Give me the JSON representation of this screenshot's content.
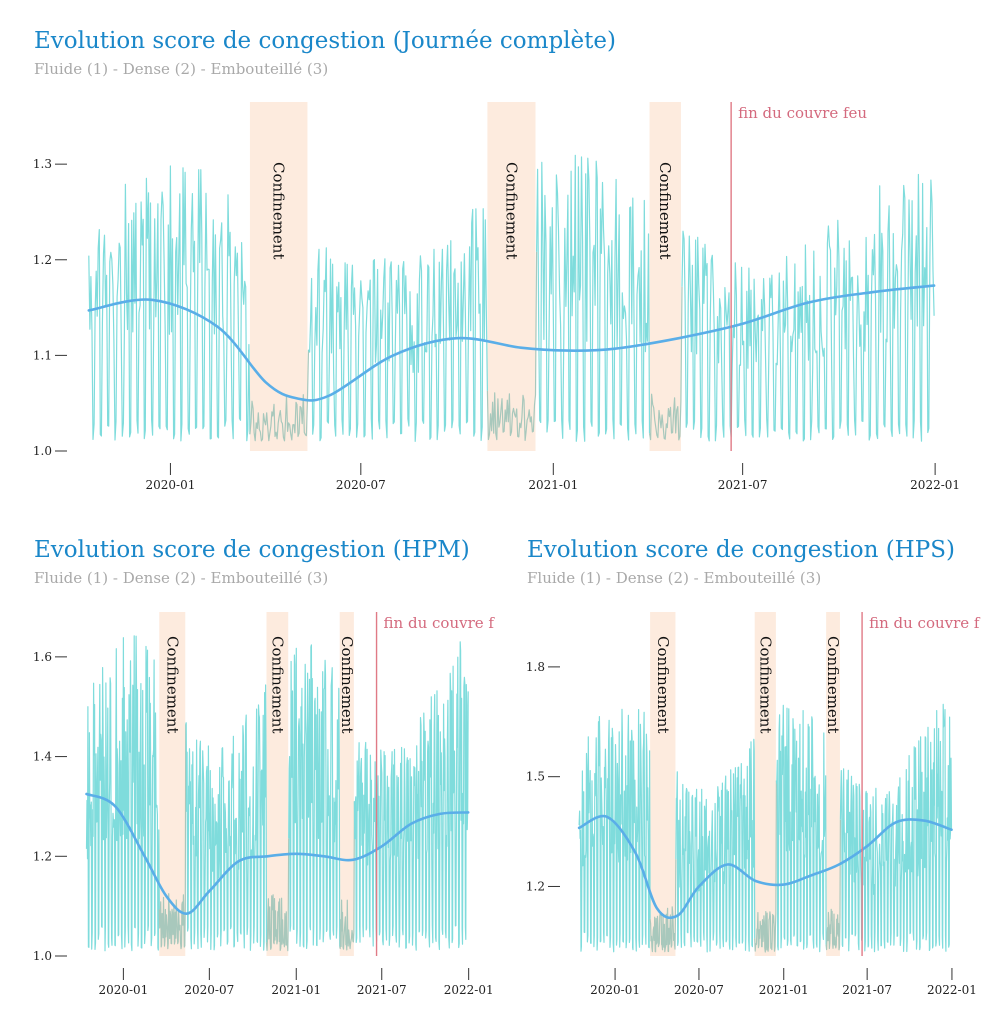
{
  "colors": {
    "title": "#1a87c9",
    "subtitle": "#a9a9a9",
    "raw_line": "#7fdcdc",
    "raw_line_lockdown": "#a8c8bc",
    "trend": "#5aaee8",
    "trend_lockdown": "#79a9c9",
    "band": "#fdebde",
    "curfew_line": "#e07a86",
    "axis_text": "#222222"
  },
  "chart_data": [
    {
      "id": "full",
      "type": "line",
      "title": "Evolution score de congestion (Journée complète)",
      "subtitle": "Fluide (1) - Dense (2) - Embouteillé (3)",
      "xlabel": "",
      "ylabel": "",
      "x_start": "2019-10-15",
      "x_end": "2021-12-31",
      "xlim": [
        "2019-09-27",
        "2022-01-20"
      ],
      "ylim": [
        1.0,
        1.365
      ],
      "x_ticks": [
        "2020-01",
        "2020-07",
        "2021-01",
        "2021-07",
        "2022-01"
      ],
      "y_ticks": [
        1.0,
        1.1,
        1.2,
        1.3
      ],
      "y_tick_labels": [
        "1.0",
        "1.1",
        "1.2",
        "1.3"
      ],
      "raw_range": {
        "base": 1.01,
        "peak_max": 1.3
      },
      "trend": {
        "x": [
          "2019-10-15",
          "2019-12-15",
          "2020-02-15",
          "2020-04-01",
          "2020-05-01",
          "2020-06-01",
          "2020-08-01",
          "2020-10-01",
          "2020-12-01",
          "2021-01-15",
          "2021-03-01",
          "2021-05-01",
          "2021-07-01",
          "2021-09-01",
          "2021-11-01",
          "2021-12-31"
        ],
        "y": [
          1.147,
          1.158,
          1.13,
          1.072,
          1.055,
          1.058,
          1.1,
          1.118,
          1.108,
          1.105,
          1.107,
          1.118,
          1.133,
          1.155,
          1.166,
          1.173
        ]
      },
      "lockdowns": [
        {
          "label": "Confinement",
          "start": "2020-03-17",
          "end": "2020-05-11"
        },
        {
          "label": "Confinement",
          "start": "2020-10-30",
          "end": "2020-12-15"
        },
        {
          "label": "Confinement",
          "start": "2021-04-03",
          "end": "2021-05-03"
        }
      ],
      "curfew": {
        "label": "fin du couvre feu",
        "date": "2021-06-20"
      }
    },
    {
      "id": "hpm",
      "type": "line",
      "title": "Evolution score de congestion (HPM)",
      "subtitle": "Fluide (1) - Dense (2) - Embouteillé (3)",
      "xlabel": "",
      "ylabel": "",
      "x_start": "2019-10-15",
      "x_end": "2021-12-31",
      "xlim": [
        "2019-09-10",
        "2022-01-25"
      ],
      "ylim": [
        1.0,
        1.69
      ],
      "x_ticks": [
        "2020-01",
        "2020-07",
        "2021-01",
        "2021-07",
        "2022-01"
      ],
      "y_ticks": [
        1.0,
        1.2,
        1.4,
        1.6
      ],
      "y_tick_labels": [
        "1.0",
        "1.2",
        "1.4",
        "1.6"
      ],
      "raw_range": {
        "base": 1.01,
        "peak_max": 1.64
      },
      "trend": {
        "x": [
          "2019-10-15",
          "2019-12-15",
          "2020-02-15",
          "2020-04-01",
          "2020-05-15",
          "2020-07-01",
          "2020-09-01",
          "2020-11-01",
          "2021-01-01",
          "2021-03-01",
          "2021-05-01",
          "2021-07-01",
          "2021-09-01",
          "2021-11-01",
          "2021-12-31"
        ],
        "y": [
          1.325,
          1.3,
          1.2,
          1.12,
          1.085,
          1.13,
          1.19,
          1.2,
          1.205,
          1.2,
          1.193,
          1.22,
          1.265,
          1.285,
          1.288
        ]
      },
      "lockdowns": [
        {
          "label": "Confinement",
          "start": "2020-03-17",
          "end": "2020-05-11"
        },
        {
          "label": "Confinement",
          "start": "2020-10-30",
          "end": "2020-12-15"
        },
        {
          "label": "Confinement",
          "start": "2021-04-03",
          "end": "2021-05-03"
        }
      ],
      "curfew": {
        "label": "fin du couvre f",
        "date": "2021-06-20"
      }
    },
    {
      "id": "hps",
      "type": "line",
      "title": "Evolution score de congestion (HPS)",
      "subtitle": "Fluide (1) - Dense (2) - Embouteillé (3)",
      "xlabel": "",
      "ylabel": "",
      "x_start": "2019-10-15",
      "x_end": "2021-12-31",
      "xlim": [
        "2019-09-10",
        "2022-01-25"
      ],
      "ylim": [
        1.01,
        1.95
      ],
      "x_ticks": [
        "2020-01",
        "2020-07",
        "2021-01",
        "2021-07",
        "2022-01"
      ],
      "y_ticks": [
        1.2,
        1.5,
        1.8
      ],
      "y_tick_labels": [
        "1.2",
        "1.5",
        "1.8"
      ],
      "raw_range": {
        "base": 1.02,
        "peak_max": 1.7
      },
      "trend": {
        "x": [
          "2019-10-15",
          "2019-12-15",
          "2020-02-15",
          "2020-04-01",
          "2020-05-15",
          "2020-07-01",
          "2020-09-01",
          "2020-11-01",
          "2021-01-01",
          "2021-03-01",
          "2021-05-01",
          "2021-07-01",
          "2021-09-01",
          "2021-11-01",
          "2021-12-31"
        ],
        "y": [
          1.36,
          1.39,
          1.29,
          1.14,
          1.12,
          1.2,
          1.26,
          1.215,
          1.205,
          1.23,
          1.26,
          1.31,
          1.375,
          1.38,
          1.355
        ]
      },
      "lockdowns": [
        {
          "label": "Confinement",
          "start": "2020-03-17",
          "end": "2020-05-11"
        },
        {
          "label": "Confinement",
          "start": "2020-10-30",
          "end": "2020-12-15"
        },
        {
          "label": "Confinement",
          "start": "2021-04-03",
          "end": "2021-05-03"
        }
      ],
      "curfew": {
        "label": "fin du couvre f",
        "date": "2021-06-20"
      }
    }
  ]
}
